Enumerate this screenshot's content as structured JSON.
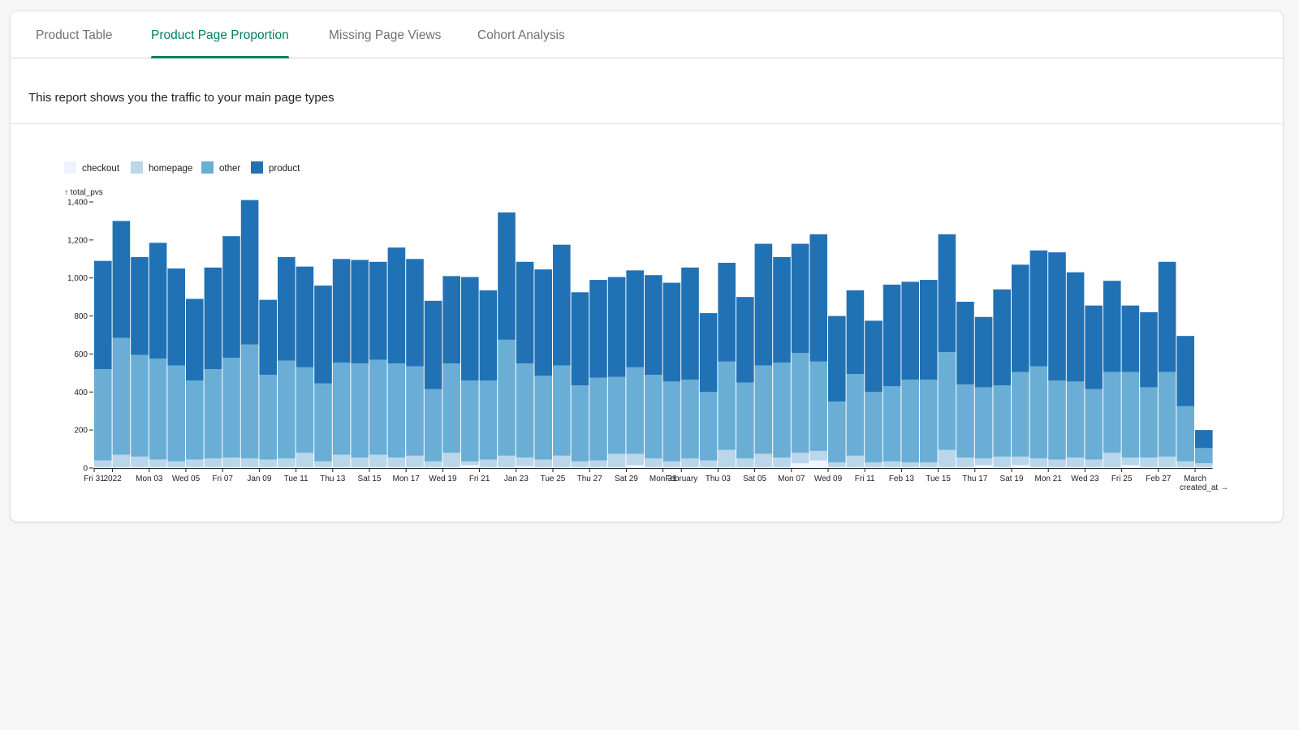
{
  "tabs": [
    {
      "label": "Product Table",
      "selected": false
    },
    {
      "label": "Product Page Proportion",
      "selected": true
    },
    {
      "label": "Missing Page Views",
      "selected": false
    },
    {
      "label": "Cohort Analysis",
      "selected": false
    }
  ],
  "description": "This report shows you the traffic to your main page types",
  "colors": {
    "accent": "#008060",
    "checkout": "#eef4fd",
    "homepage": "#b9d6ea",
    "other": "#6aaed6",
    "product": "#2171b5"
  },
  "chart_data": {
    "type": "bar",
    "stacked": true,
    "title": "",
    "xlabel": "created_at →",
    "ylabel": "↑ total_pvs",
    "ylim": [
      0,
      1400
    ],
    "yticks": [
      "0",
      "200",
      "400",
      "600",
      "800",
      "1,000",
      "1,200",
      "1,400"
    ],
    "legend_position": "top-left",
    "categories": [
      "2021-12-31",
      "2022-01-01",
      "2022-01-02",
      "2022-01-03",
      "2022-01-04",
      "2022-01-05",
      "2022-01-06",
      "2022-01-07",
      "2022-01-08",
      "2022-01-09",
      "2022-01-10",
      "2022-01-11",
      "2022-01-12",
      "2022-01-13",
      "2022-01-14",
      "2022-01-15",
      "2022-01-16",
      "2022-01-17",
      "2022-01-18",
      "2022-01-19",
      "2022-01-20",
      "2022-01-21",
      "2022-01-22",
      "2022-01-23",
      "2022-01-24",
      "2022-01-25",
      "2022-01-26",
      "2022-01-27",
      "2022-01-28",
      "2022-01-29",
      "2022-01-30",
      "2022-01-31",
      "2022-02-01",
      "2022-02-02",
      "2022-02-03",
      "2022-02-04",
      "2022-02-05",
      "2022-02-06",
      "2022-02-07",
      "2022-02-08",
      "2022-02-09",
      "2022-02-10",
      "2022-02-11",
      "2022-02-12",
      "2022-02-13",
      "2022-02-14",
      "2022-02-15",
      "2022-02-16",
      "2022-02-17",
      "2022-02-18",
      "2022-02-19",
      "2022-02-20",
      "2022-02-21",
      "2022-02-22",
      "2022-02-23",
      "2022-02-24",
      "2022-02-25",
      "2022-02-26",
      "2022-02-27",
      "2022-02-28",
      "2022-03-01"
    ],
    "xtick_labels": [
      {
        "date": "2021-12-31",
        "label": "Fri 31"
      },
      {
        "date": "2022-01-01",
        "label": "2022"
      },
      {
        "date": "2022-01-03",
        "label": "Mon 03"
      },
      {
        "date": "2022-01-05",
        "label": "Wed 05"
      },
      {
        "date": "2022-01-07",
        "label": "Fri 07"
      },
      {
        "date": "2022-01-09",
        "label": "Jan 09"
      },
      {
        "date": "2022-01-11",
        "label": "Tue 11"
      },
      {
        "date": "2022-01-13",
        "label": "Thu 13"
      },
      {
        "date": "2022-01-15",
        "label": "Sat 15"
      },
      {
        "date": "2022-01-17",
        "label": "Mon 17"
      },
      {
        "date": "2022-01-19",
        "label": "Wed 19"
      },
      {
        "date": "2022-01-21",
        "label": "Fri 21"
      },
      {
        "date": "2022-01-23",
        "label": "Jan 23"
      },
      {
        "date": "2022-01-25",
        "label": "Tue 25"
      },
      {
        "date": "2022-01-27",
        "label": "Thu 27"
      },
      {
        "date": "2022-01-29",
        "label": "Sat 29"
      },
      {
        "date": "2022-01-31",
        "label": "Mon 31"
      },
      {
        "date": "2022-02-01",
        "label": "February"
      },
      {
        "date": "2022-02-03",
        "label": "Thu 03"
      },
      {
        "date": "2022-02-05",
        "label": "Sat 05"
      },
      {
        "date": "2022-02-07",
        "label": "Mon 07"
      },
      {
        "date": "2022-02-09",
        "label": "Wed 09"
      },
      {
        "date": "2022-02-11",
        "label": "Fri 11"
      },
      {
        "date": "2022-02-13",
        "label": "Feb 13"
      },
      {
        "date": "2022-02-15",
        "label": "Tue 15"
      },
      {
        "date": "2022-02-17",
        "label": "Thu 17"
      },
      {
        "date": "2022-02-19",
        "label": "Sat 19"
      },
      {
        "date": "2022-02-21",
        "label": "Mon 21"
      },
      {
        "date": "2022-02-23",
        "label": "Wed 23"
      },
      {
        "date": "2022-02-25",
        "label": "Fri 25"
      },
      {
        "date": "2022-02-27",
        "label": "Feb 27"
      },
      {
        "date": "2022-03-01",
        "label": "March"
      }
    ],
    "series": [
      {
        "name": "checkout",
        "values": [
          5,
          5,
          5,
          5,
          5,
          5,
          5,
          5,
          5,
          5,
          5,
          5,
          5,
          5,
          5,
          5,
          5,
          5,
          5,
          5,
          15,
          5,
          5,
          10,
          5,
          5,
          5,
          5,
          5,
          15,
          5,
          5,
          5,
          5,
          5,
          5,
          5,
          5,
          25,
          40,
          5,
          5,
          5,
          5,
          5,
          5,
          5,
          5,
          15,
          5,
          15,
          5,
          5,
          5,
          5,
          5,
          15,
          5,
          5,
          5,
          5
        ]
      },
      {
        "name": "homepage",
        "values": [
          35,
          65,
          55,
          40,
          30,
          40,
          45,
          50,
          45,
          40,
          45,
          75,
          30,
          65,
          50,
          65,
          50,
          60,
          30,
          75,
          20,
          40,
          60,
          45,
          40,
          60,
          30,
          35,
          70,
          60,
          45,
          30,
          45,
          35,
          90,
          45,
          70,
          50,
          55,
          50,
          25,
          60,
          25,
          30,
          25,
          25,
          90,
          50,
          35,
          55,
          45,
          45,
          40,
          50,
          40,
          75,
          40,
          50,
          55,
          30,
          20
        ]
      },
      {
        "name": "other",
        "values": [
          480,
          615,
          535,
          530,
          505,
          415,
          470,
          525,
          600,
          445,
          515,
          450,
          410,
          485,
          495,
          500,
          495,
          470,
          380,
          470,
          425,
          415,
          610,
          495,
          440,
          475,
          400,
          435,
          405,
          455,
          440,
          420,
          415,
          360,
          465,
          400,
          465,
          500,
          525,
          470,
          320,
          430,
          370,
          395,
          435,
          435,
          515,
          385,
          375,
          375,
          445,
          485,
          415,
          400,
          370,
          425,
          450,
          370,
          445,
          290,
          80
        ]
      },
      {
        "name": "product",
        "values": [
          570,
          615,
          515,
          610,
          510,
          430,
          535,
          640,
          760,
          395,
          545,
          530,
          515,
          545,
          545,
          515,
          610,
          565,
          465,
          460,
          545,
          475,
          670,
          535,
          560,
          635,
          490,
          515,
          525,
          510,
          525,
          520,
          590,
          415,
          520,
          450,
          640,
          555,
          575,
          670,
          450,
          440,
          375,
          535,
          515,
          525,
          620,
          435,
          370,
          505,
          565,
          610,
          675,
          575,
          440,
          480,
          350,
          395,
          580,
          370,
          95
        ]
      }
    ]
  }
}
